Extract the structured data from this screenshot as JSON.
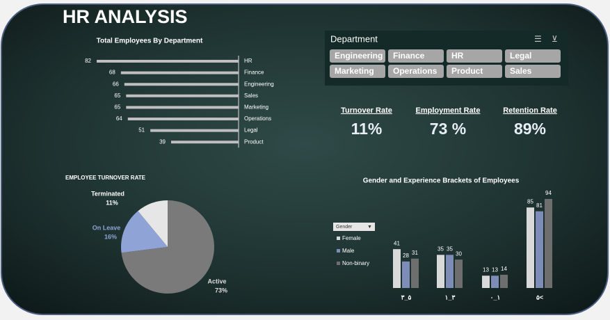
{
  "header": {
    "title": "HR ANALYSIS"
  },
  "slicer": {
    "title": "Department",
    "items": [
      "Engineering",
      "Finance",
      "HR",
      "Legal",
      "Marketing",
      "Operations",
      "Product",
      "Sales"
    ]
  },
  "kpis": [
    {
      "label": "Turnover Rate",
      "value": "11%"
    },
    {
      "label": "Employment Rate",
      "value": "73 %"
    },
    {
      "label": "Retention Rate",
      "value": "89%"
    }
  ],
  "chart_data": [
    {
      "type": "hbar",
      "title": "Total Employees By Department",
      "categories": [
        "HR",
        "Finance",
        "Engineering",
        "Sales",
        "Marketing",
        "Operations",
        "Legal",
        "Product"
      ],
      "values": [
        82,
        68,
        66,
        65,
        65,
        64,
        51,
        39
      ],
      "color": "#bfbfbf"
    },
    {
      "type": "pie",
      "title": "EMPLOYEE TURNOVER RATE",
      "categories": [
        "Terminated",
        "On Leave",
        "Active"
      ],
      "values": [
        11,
        16,
        73
      ],
      "value_labels": [
        "11%",
        "16%",
        "73%"
      ],
      "colors": [
        "#e6e6e6",
        "#8fa3d6",
        "#7a7a7a"
      ]
    },
    {
      "type": "bar",
      "title": "Gender and Experience Brackets of Employees",
      "legend_title": "Gender",
      "categories": [
        "۳_۵",
        "۱_۳",
        "۰_۱",
        "۵<"
      ],
      "series": [
        {
          "name": "Female",
          "color": "#d9d9d9",
          "values": [
            41,
            35,
            13,
            85
          ]
        },
        {
          "name": "Male",
          "color": "#7d8db8",
          "values": [
            28,
            35,
            13,
            81
          ]
        },
        {
          "name": "Non-binary",
          "color": "#6e6e6e",
          "values": [
            31,
            30,
            14,
            94
          ]
        }
      ]
    }
  ]
}
